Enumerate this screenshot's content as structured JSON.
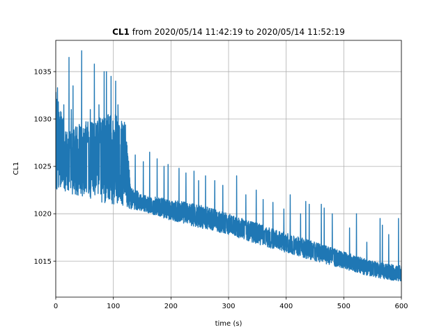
{
  "chart_data": {
    "type": "line",
    "title_bold": "CL1",
    "title_rest": " from 2020/05/14 11:42:19 to 2020/05/14 11:52:19",
    "xlabel": "time (s)",
    "ylabel": "CL1",
    "xlim": [
      0,
      600
    ],
    "ylim": [
      1011.2,
      1038.3
    ],
    "xticks": [
      0,
      100,
      200,
      300,
      400,
      500,
      600
    ],
    "yticks": [
      1015,
      1020,
      1025,
      1030,
      1035
    ],
    "grid": true,
    "line_color": "#1f77b4",
    "series": [
      {
        "x": [
          0,
          20,
          40,
          60,
          80,
          100,
          120,
          130,
          150,
          200,
          250,
          300,
          350,
          400,
          450,
          500,
          550,
          600
        ],
        "upper": [
          1033.0,
          1028.5,
          1029.5,
          1030.0,
          1030.5,
          1030.5,
          1030.5,
          1023.0,
          1022.0,
          1021.5,
          1021.0,
          1020.0,
          1019.0,
          1018.0,
          1017.0,
          1016.0,
          1015.0,
          1014.5
        ],
        "lower": [
          1022.5,
          1022.3,
          1021.8,
          1021.5,
          1021.2,
          1021.0,
          1020.8,
          1020.5,
          1020.3,
          1019.3,
          1018.5,
          1017.8,
          1016.8,
          1015.9,
          1015.0,
          1014.2,
          1013.3,
          1012.8
        ],
        "spikes": [
          [
            3,
            1033.3
          ],
          [
            14,
            1031.5
          ],
          [
            23,
            1036.5
          ],
          [
            27,
            1031.0
          ],
          [
            30,
            1033.5
          ],
          [
            45,
            1037.2
          ],
          [
            53,
            1028.0
          ],
          [
            60,
            1031.0
          ],
          [
            67,
            1035.8
          ],
          [
            75,
            1031.5
          ],
          [
            84,
            1035.0
          ],
          [
            88,
            1035.0
          ],
          [
            96,
            1034.5
          ],
          [
            104,
            1034.0
          ],
          [
            108,
            1031.5
          ],
          [
            115,
            1029.5
          ],
          [
            138,
            1026.2
          ],
          [
            152,
            1025.5
          ],
          [
            163,
            1026.5
          ],
          [
            176,
            1025.8
          ],
          [
            188,
            1025.0
          ],
          [
            195,
            1025.2
          ],
          [
            214,
            1024.8
          ],
          [
            226,
            1024.3
          ],
          [
            240,
            1024.5
          ],
          [
            248,
            1023.5
          ],
          [
            260,
            1024.0
          ],
          [
            276,
            1023.5
          ],
          [
            290,
            1023.0
          ],
          [
            314,
            1024.0
          ],
          [
            330,
            1022.0
          ],
          [
            348,
            1022.5
          ],
          [
            360,
            1021.5
          ],
          [
            377,
            1021.2
          ],
          [
            396,
            1020.5
          ],
          [
            407,
            1022.0
          ],
          [
            425,
            1020.0
          ],
          [
            434,
            1021.3
          ],
          [
            440,
            1021.0
          ],
          [
            461,
            1021.0
          ],
          [
            466,
            1020.6
          ],
          [
            480,
            1020.0
          ],
          [
            510,
            1018.5
          ],
          [
            522,
            1020.0
          ],
          [
            540,
            1017.0
          ],
          [
            563,
            1019.5
          ],
          [
            567,
            1018.8
          ],
          [
            578,
            1017.8
          ],
          [
            595,
            1019.5
          ]
        ]
      }
    ]
  }
}
